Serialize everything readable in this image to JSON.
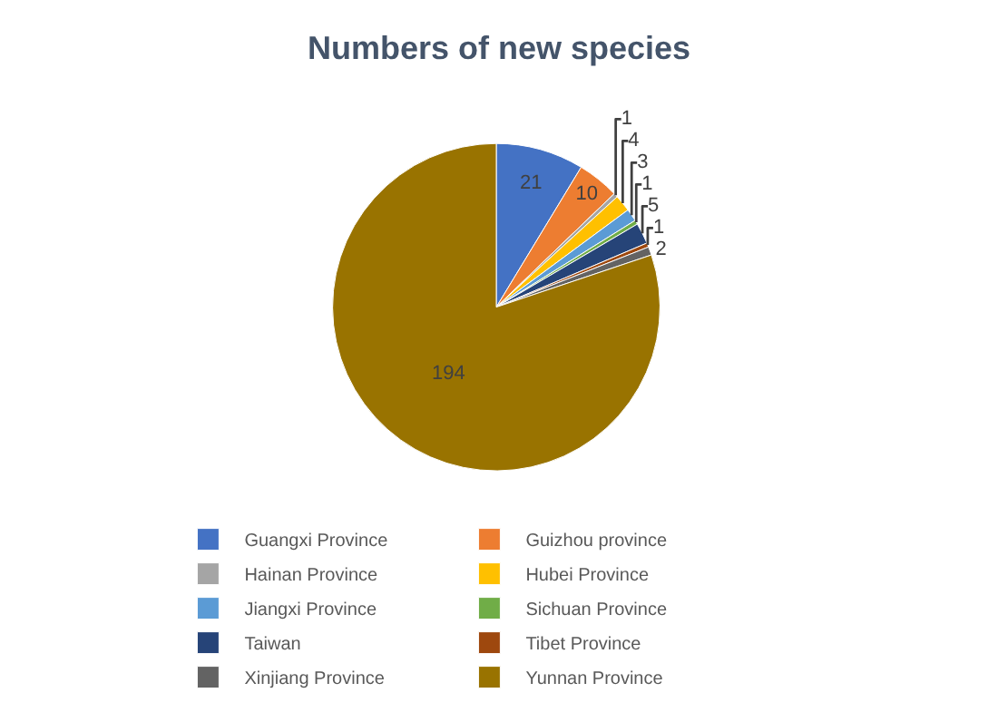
{
  "chart_data": {
    "type": "pie",
    "title": "Numbers of new species",
    "categories": [
      "Guangxi Province",
      "Guizhou province",
      "Hainan Province",
      "Hubei Province",
      "Jiangxi Province",
      "Sichuan Province",
      "Taiwan",
      "Tibet Province",
      "Xinjiang Province",
      "Yunnan Province"
    ],
    "values": [
      21,
      10,
      1,
      4,
      3,
      1,
      5,
      1,
      2,
      194
    ],
    "colors": [
      "#4472c4",
      "#ed7d31",
      "#a5a5a5",
      "#ffc000",
      "#5b9bd5",
      "#70ad47",
      "#264478",
      "#9e480e",
      "#636363",
      "#997300"
    ],
    "data_labels": true,
    "legend": "bottom"
  }
}
